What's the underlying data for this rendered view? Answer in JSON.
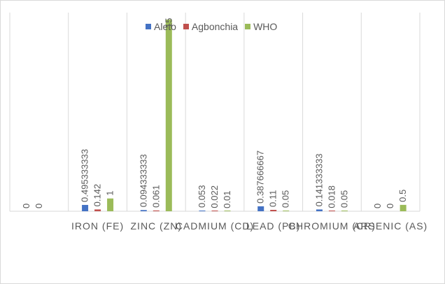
{
  "chart_data": {
    "type": "bar",
    "categories": [
      "",
      "IRON (FE)",
      "ZINC (ZN)",
      "CADMIUM (CD)",
      "LEAD (PB)",
      "CHROMIUM (CR)",
      "ARSENIC (AS)"
    ],
    "series": [
      {
        "name": "Aleto",
        "color": "#4472c4",
        "values": [
          0,
          0.495333333,
          0.094333333,
          0.053,
          0.387666667,
          0.141333333,
          0
        ],
        "labels": [
          "0",
          "0.495333333",
          "0.094333333",
          "0.053",
          "0.387666667",
          "0.141333333",
          "0"
        ]
      },
      {
        "name": "Agbonchia",
        "color": "#c0504d",
        "values": [
          0,
          0.142,
          0.061,
          0.022,
          0.11,
          0.018,
          0
        ],
        "labels": [
          "0",
          "0.142",
          "0.061",
          "0.022",
          "0.11",
          "0.018",
          "0"
        ]
      },
      {
        "name": "WHO",
        "color": "#9bbb59",
        "values": [
          null,
          1,
          15,
          0.01,
          0.05,
          0.05,
          0.5
        ],
        "labels": [
          "",
          "1",
          "15",
          "0.01",
          "0.05",
          "0.05",
          "0.5"
        ]
      }
    ],
    "ylim": [
      0,
      15
    ],
    "grid": true,
    "legend_position": "top"
  }
}
